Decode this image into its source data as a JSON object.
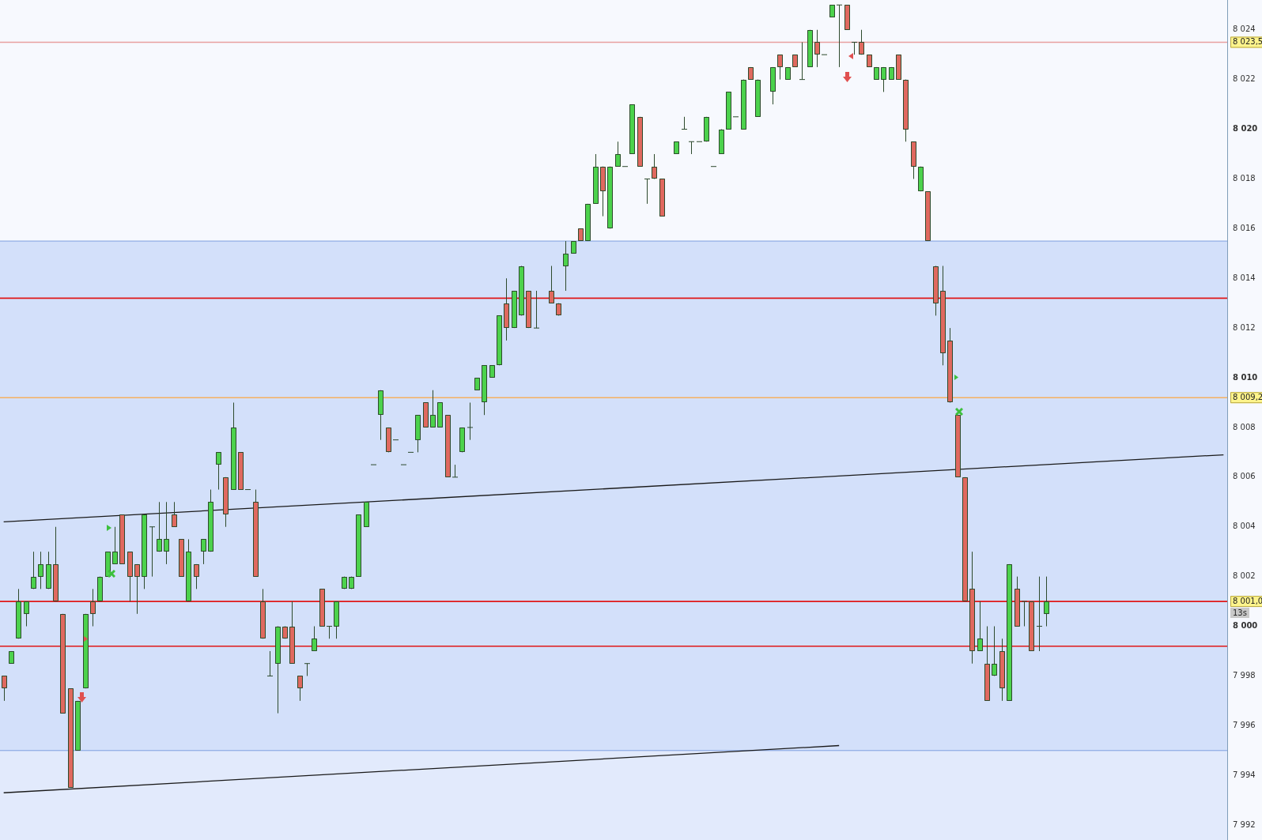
{
  "chart_data": {
    "type": "candlestick",
    "categories": [
      null,
      null,
      null,
      null,
      null,
      null,
      null,
      null,
      null,
      null,
      null,
      null,
      null,
      null,
      null,
      null,
      null,
      null,
      null,
      null,
      null,
      null,
      null,
      null,
      null,
      null,
      null,
      null,
      null,
      null,
      null,
      null,
      null,
      null,
      null,
      null,
      null,
      null,
      null,
      null,
      null,
      null,
      null,
      null,
      null,
      null,
      null,
      null,
      null,
      null,
      null,
      null,
      null,
      null,
      null,
      null,
      null,
      null,
      null,
      null,
      null,
      null,
      null,
      null,
      null,
      null,
      null,
      null,
      null,
      null,
      null,
      null,
      null,
      null,
      null,
      null,
      null,
      null,
      null,
      null,
      null,
      null,
      null,
      null,
      null,
      null,
      null,
      null,
      null,
      null,
      null,
      null,
      null,
      null,
      null,
      null,
      null,
      null,
      null,
      null,
      null,
      null,
      null,
      null,
      null,
      null,
      null,
      null,
      null,
      null,
      null,
      null,
      null,
      null,
      null,
      null,
      null,
      null,
      null,
      null,
      null,
      null,
      null,
      null,
      null,
      null,
      null,
      null,
      null,
      null,
      null,
      null,
      null,
      null,
      null,
      null,
      null,
      null,
      null,
      null,
      null,
      null,
      null,
      null,
      null,
      null,
      null,
      null,
      null,
      null,
      null,
      null,
      null,
      null,
      null,
      null,
      null,
      null,
      null,
      null,
      null,
      null,
      null,
      null,
      null,
      null
    ],
    "ohlc": [
      [
        7998,
        7998,
        7997,
        7997.5
      ],
      [
        7998.5,
        7999,
        7998.5,
        7999
      ],
      [
        7999.5,
        8001.5,
        7999.5,
        8001
      ],
      [
        8000.5,
        8001,
        8000,
        8001
      ],
      [
        8001.5,
        8003,
        8001.5,
        8002
      ],
      [
        8002,
        8003,
        8001.5,
        8002.5
      ],
      [
        8001.5,
        8003,
        8001.5,
        8002.5
      ],
      [
        8002.5,
        8004,
        8001,
        8001
      ],
      [
        8000.5,
        8000.5,
        7996.5,
        7996.5
      ],
      [
        7997.5,
        7997.5,
        7993.5,
        7993.5
      ],
      [
        7995,
        7997,
        7995,
        7997
      ],
      [
        7997.5,
        8000.5,
        7997.5,
        8000.5
      ],
      [
        8001,
        8001.5,
        8000,
        8000.5
      ],
      [
        8001,
        8002,
        8001,
        8002
      ],
      [
        8002,
        8003,
        8002,
        8003
      ],
      [
        8002.5,
        8004,
        8002.5,
        8003
      ],
      [
        8004.5,
        8004.5,
        8002.5,
        8002.5
      ],
      [
        8003,
        8003,
        8001,
        8002
      ],
      [
        8002.5,
        8002.5,
        8000.5,
        8002
      ],
      [
        8002,
        8004.5,
        8001.5,
        8004.5
      ],
      [
        8004,
        8004,
        8002,
        8004
      ],
      [
        8003,
        8005,
        8003,
        8003.5
      ],
      [
        8003,
        8005,
        8002.5,
        8003.5
      ],
      [
        8004.5,
        8005,
        8004,
        8004
      ],
      [
        8003.5,
        8003.5,
        8002,
        8002
      ],
      [
        8001,
        8003.5,
        8001,
        8003
      ],
      [
        8002.5,
        8002.5,
        8001.5,
        8002
      ],
      [
        8003,
        8003.5,
        8002.5,
        8003.5
      ],
      [
        8003,
        8005.5,
        8003,
        8005
      ],
      [
        8006.5,
        8007,
        8005.5,
        8007
      ],
      [
        8006,
        8006,
        8004,
        8004.5
      ],
      [
        8005.5,
        8009,
        8005.5,
        8008
      ],
      [
        8007,
        8007,
        8005.5,
        8005.5
      ],
      [
        8005.5,
        8005.5,
        8005.5,
        8005.5
      ],
      [
        8005,
        8005.5,
        8002,
        8002
      ],
      [
        8001,
        8001.5,
        7999.5,
        7999.5
      ],
      [
        7998,
        7999,
        7998,
        7998
      ],
      [
        7998.5,
        8000,
        7996.5,
        8000
      ],
      [
        8000,
        8000,
        7999.5,
        7999.5
      ],
      [
        8000,
        8001,
        7998.5,
        7998.5
      ],
      [
        7998,
        7998,
        7997,
        7997.5
      ],
      [
        7998.5,
        7998.5,
        7998,
        7998.5
      ],
      [
        7999,
        8000,
        7999,
        7999.5
      ],
      [
        8001.5,
        8001.5,
        8000,
        8000
      ],
      [
        8000,
        8000,
        7999.5,
        8000
      ],
      [
        8000,
        8001,
        7999.5,
        8001
      ],
      [
        8001.5,
        8002,
        8001.5,
        8002
      ],
      [
        8001.5,
        8002,
        8001.5,
        8002
      ],
      [
        8002,
        8004.5,
        8002,
        8004.5
      ],
      [
        8004,
        8005,
        8004,
        8005
      ],
      [
        8006.5,
        8006.5,
        8006.5,
        8006.5
      ],
      [
        8008.5,
        8009.5,
        8007.5,
        8009.5
      ],
      [
        8008,
        8008,
        8007,
        8007
      ],
      [
        8007.5,
        8007.5,
        8007.5,
        8007.5
      ],
      [
        8006.5,
        8006.5,
        8006.5,
        8006.5
      ],
      [
        8007,
        8007,
        8007,
        8007
      ],
      [
        8007.5,
        8008.5,
        8007,
        8008.5
      ],
      [
        8009,
        8009,
        8008,
        8008
      ],
      [
        8008,
        8009.5,
        8008,
        8008.5
      ],
      [
        8008,
        8009,
        8008,
        8009
      ],
      [
        8008.5,
        8008.5,
        8006,
        8006
      ],
      [
        8006,
        8006.5,
        8006,
        8006
      ],
      [
        8007,
        8008,
        8007,
        8008
      ],
      [
        8008,
        8009,
        8007.5,
        8008
      ],
      [
        8009.5,
        8010,
        8009.5,
        8010
      ],
      [
        8009,
        8010.5,
        8008.5,
        8010.5
      ],
      [
        8010,
        8010.5,
        8010,
        8010.5
      ],
      [
        8010.5,
        8012.5,
        8010.5,
        8012.5
      ],
      [
        8013,
        8014,
        8011.5,
        8012
      ],
      [
        8012,
        8013.5,
        8012,
        8013.5
      ],
      [
        8012.5,
        8014.5,
        8012.5,
        8014.5
      ],
      [
        8013.5,
        8013.5,
        8012,
        8012
      ],
      [
        8012,
        8013.5,
        8012,
        8012
      ],
      null,
      [
        8013.5,
        8014.5,
        8013,
        8013
      ],
      [
        8013,
        8013,
        8012.5,
        8012.5
      ],
      [
        8014.5,
        8015.5,
        8013.5,
        8015
      ],
      [
        8015,
        8015.5,
        8015,
        8015.5
      ],
      [
        8016,
        8016,
        8015.5,
        8015.5
      ],
      [
        8015.5,
        8017,
        8015.5,
        8017
      ],
      [
        8017,
        8019,
        8017,
        8018.5
      ],
      [
        8018.5,
        8018.5,
        8016.5,
        8017.5
      ],
      [
        8016,
        8018.5,
        8016,
        8018.5
      ],
      [
        8018.5,
        8019.5,
        8018.5,
        8019
      ],
      [
        8018.5,
        8018.5,
        8018.5,
        8018.5
      ],
      [
        8019,
        8021,
        8019,
        8021
      ],
      [
        8020.5,
        8020.5,
        8018.5,
        8018.5
      ],
      [
        8018,
        8018,
        8017,
        8018
      ],
      [
        8018.5,
        8019,
        8018,
        8018
      ],
      [
        8018,
        8018,
        8016.5,
        8016.5
      ],
      null,
      [
        8019,
        8019.5,
        8019,
        8019.5
      ],
      [
        8020,
        8020.5,
        8020,
        8020
      ],
      [
        8019.5,
        8019.5,
        8019,
        8019.5
      ],
      [
        8019.5,
        8019.5,
        8019.5,
        8019.5
      ],
      [
        8019.5,
        8020.5,
        8019.5,
        8020.5
      ],
      [
        8018.5,
        8018.5,
        8018.5,
        8018.5
      ],
      [
        8019,
        8020,
        8019,
        8020
      ],
      [
        8020,
        8021.5,
        8020,
        8021.5
      ],
      [
        8020.5,
        8020.5,
        8020.5,
        8020.5
      ],
      [
        8020,
        8022,
        8020,
        8022
      ],
      [
        8022.5,
        8022.5,
        8022,
        8022
      ],
      [
        8020.5,
        8022,
        8020.5,
        8022
      ],
      null,
      [
        8021.5,
        8022.5,
        8021,
        8022.5
      ],
      [
        8023,
        8023,
        8022,
        8022.5
      ],
      [
        8022,
        8022.5,
        8022,
        8022.5
      ],
      [
        8023,
        8023,
        8022.5,
        8022.5
      ],
      [
        8022,
        8023.5,
        8022,
        8022
      ],
      [
        8022.5,
        8024,
        8022.5,
        8024
      ],
      [
        8023.5,
        8024,
        8022.5,
        8023
      ],
      [
        8023,
        8023,
        8023,
        8023
      ],
      [
        8024.5,
        8025,
        8024.5,
        8025
      ],
      [
        8025,
        8025,
        8022.5,
        8025
      ],
      [
        8025,
        8025,
        8024,
        8024
      ],
      [
        8023.5,
        8023.5,
        8023,
        8023.5
      ],
      [
        8023.5,
        8024,
        8023,
        8023
      ],
      [
        8023,
        8023,
        8022.5,
        8022.5
      ],
      [
        8022,
        8022.5,
        8022,
        8022.5
      ],
      [
        8022,
        8022.5,
        8021.5,
        8022.5
      ],
      [
        8022,
        8022.5,
        8022,
        8022.5
      ],
      [
        8023,
        8023,
        8022,
        8022
      ],
      [
        8022,
        8022,
        8019.5,
        8020
      ],
      [
        8019.5,
        8019.5,
        8018,
        8018.5
      ],
      [
        8017.5,
        8018.5,
        8017.5,
        8018.5
      ],
      [
        8017.5,
        8017.5,
        8015.5,
        8015.5
      ],
      [
        8014.5,
        8014.5,
        8012.5,
        8013
      ],
      [
        8013.5,
        8014.5,
        8010.5,
        8011
      ],
      [
        8011.5,
        8012,
        8009,
        8009
      ],
      [
        8008.5,
        8008.5,
        8006,
        8006
      ],
      [
        8006,
        8006,
        8001,
        8001
      ],
      [
        8001.5,
        8003,
        7998.5,
        7999
      ],
      [
        7999,
        8001,
        7999,
        7999.5
      ],
      [
        7998.5,
        8000,
        7997,
        7997
      ],
      [
        7998,
        8000,
        7998,
        7998.5
      ],
      [
        7999,
        7999.5,
        7997,
        7997.5
      ],
      [
        7997,
        8002.5,
        7997,
        8002.5
      ],
      [
        8001.5,
        8002,
        8000,
        8000
      ],
      [
        8001,
        8001,
        8000,
        8001
      ],
      [
        8001,
        8001,
        7999,
        7999
      ],
      [
        8000,
        8002,
        7999,
        8000
      ],
      [
        8000.5,
        8002,
        8000,
        8001
      ],
      null,
      null,
      null,
      null,
      null,
      null,
      null,
      null,
      null,
      null,
      null,
      null,
      null,
      null,
      null,
      null,
      null,
      null,
      null,
      null,
      null,
      null,
      null,
      null
    ],
    "colors": [
      "#e0695f",
      "#4cd24c",
      "#4cd24c",
      "#4cd24c",
      "#4cd24c",
      "#4cd24c",
      "#4cd24c",
      "#e0695f",
      "#e0695f",
      "#e0695f",
      "#4cd24c",
      "#4cd24c",
      "#e0695f",
      "#4cd24c",
      "#4cd24c",
      "#4cd24c",
      "#e0695f",
      "#e0695f",
      "#e0695f",
      "#4cd24c",
      "#2e4a2e",
      "#4cd24c",
      "#4cd24c",
      "#e0695f",
      "#e0695f",
      "#4cd24c",
      "#e0695f",
      "#4cd24c",
      "#4cd24c",
      "#4cd24c",
      "#e0695f",
      "#4cd24c",
      "#e0695f",
      "#2e4a2e",
      "#e0695f",
      "#e0695f",
      "#2e4a2e",
      "#4cd24c",
      "#e0695f",
      "#e0695f",
      "#e0695f",
      "#2e4a2e",
      "#4cd24c",
      "#e0695f",
      "#2e4a2e",
      "#4cd24c",
      "#4cd24c",
      "#4cd24c",
      "#4cd24c",
      "#4cd24c",
      "#2e4a2e",
      "#4cd24c",
      "#e0695f",
      "#2e4a2e",
      "#2e4a2e",
      "#2e4a2e",
      "#4cd24c",
      "#e0695f",
      "#4cd24c",
      "#4cd24c",
      "#e0695f",
      "#2e4a2e",
      "#4cd24c",
      "#2e4a2e",
      "#4cd24c",
      "#4cd24c",
      "#4cd24c",
      "#4cd24c",
      "#e0695f",
      "#4cd24c",
      "#4cd24c",
      "#e0695f",
      "#2e4a2e",
      null,
      "#e0695f",
      "#e0695f",
      "#4cd24c",
      "#4cd24c",
      "#e0695f",
      "#4cd24c",
      "#4cd24c",
      "#e0695f",
      "#4cd24c",
      "#4cd24c",
      "#2e4a2e",
      "#4cd24c",
      "#e0695f",
      "#2e4a2e",
      "#e0695f",
      "#e0695f",
      null,
      "#4cd24c",
      "#2e4a2e",
      "#2e4a2e",
      "#2e4a2e",
      "#4cd24c",
      "#2e4a2e",
      "#4cd24c",
      "#4cd24c",
      "#2e4a2e",
      "#4cd24c",
      "#e0695f",
      "#4cd24c",
      null,
      "#4cd24c",
      "#e0695f",
      "#4cd24c",
      "#e0695f",
      "#2e4a2e",
      "#4cd24c",
      "#e0695f",
      "#2e4a2e",
      "#4cd24c",
      "#2e4a2e",
      "#e0695f",
      "#2e4a2e",
      "#e0695f",
      "#e0695f",
      "#4cd24c",
      "#4cd24c",
      "#4cd24c",
      "#e0695f",
      "#e0695f",
      "#e0695f",
      "#4cd24c",
      "#e0695f",
      "#e0695f",
      "#e0695f",
      "#e0695f",
      "#e0695f",
      "#e0695f",
      "#e0695f",
      "#4cd24c",
      "#e0695f",
      "#4cd24c",
      "#e0695f",
      "#4cd24c",
      "#e0695f",
      "#2e4a2e",
      "#e0695f",
      "#2e4a2e",
      "#4cd24c",
      null,
      null,
      null,
      null,
      null,
      null,
      null,
      null,
      null,
      null,
      null,
      null,
      null,
      null,
      null,
      null,
      null,
      null,
      null,
      null,
      null,
      null,
      null,
      null
    ],
    "series": [
      {
        "type": "line",
        "color": "#1a1a1a",
        "values": [
          8004.2,
          null,
          null,
          null,
          null,
          null,
          null,
          null,
          null,
          null,
          null,
          null,
          null,
          null,
          null,
          null,
          null,
          null,
          null,
          null,
          null,
          null,
          null,
          null,
          null,
          null,
          null,
          null,
          null,
          null,
          null,
          null,
          null,
          null,
          null,
          null,
          null,
          null,
          null,
          null,
          null,
          null,
          null,
          null,
          null,
          null,
          null,
          null,
          null,
          null,
          null,
          null,
          null,
          null,
          null,
          null,
          null,
          null,
          null,
          null,
          null,
          null,
          null,
          null,
          null,
          null,
          null,
          null,
          null,
          null,
          null,
          null,
          null,
          null,
          null,
          null,
          null,
          null,
          null,
          null,
          null,
          null,
          null,
          null,
          null,
          null,
          null,
          null,
          null,
          null,
          null,
          null,
          null,
          null,
          null,
          null,
          null,
          null,
          null,
          null,
          null,
          null,
          null,
          null,
          null,
          null,
          null,
          null,
          null,
          null,
          null,
          null,
          null,
          null,
          null,
          null,
          null,
          null,
          null,
          null,
          null,
          null,
          null,
          null,
          null,
          null,
          null,
          null,
          null,
          null,
          null,
          null,
          null,
          null,
          null,
          null,
          null,
          null,
          null,
          null,
          null,
          null,
          null,
          null,
          null,
          null,
          null,
          null,
          null,
          null,
          null,
          null,
          null,
          null,
          null,
          null,
          null,
          null,
          null,
          null,
          null,
          null,
          null,
          null,
          null,
          8006.9
        ]
      },
      {
        "type": "line",
        "color": "#1a1a1a",
        "values": [
          7993.3,
          null,
          null,
          null,
          null,
          null,
          null,
          null,
          null,
          null,
          null,
          null,
          null,
          null,
          null,
          null,
          null,
          null,
          null,
          null,
          null,
          null,
          null,
          null,
          null,
          null,
          null,
          null,
          null,
          null,
          null,
          null,
          null,
          null,
          null,
          null,
          null,
          null,
          null,
          null,
          null,
          null,
          null,
          null,
          null,
          null,
          null,
          null,
          null,
          null,
          null,
          null,
          null,
          null,
          null,
          null,
          null,
          null,
          null,
          null,
          null,
          null,
          null,
          null,
          null,
          null,
          null,
          null,
          null,
          null,
          null,
          null,
          null,
          null,
          null,
          null,
          null,
          null,
          null,
          null,
          null,
          null,
          null,
          null,
          null,
          null,
          null,
          null,
          null,
          null,
          null,
          null,
          null,
          null,
          null,
          null,
          null,
          null,
          null,
          null,
          null,
          null,
          null,
          null,
          null,
          null,
          null,
          null,
          null,
          null,
          null,
          null,
          null,
          7995.2,
          null,
          null,
          null,
          null,
          null,
          null,
          null,
          null,
          null,
          null,
          null,
          null,
          null,
          null,
          null,
          null,
          null,
          null,
          null,
          null,
          null,
          null,
          null,
          null,
          null,
          null,
          null,
          null,
          null,
          null,
          null,
          null,
          null,
          null,
          null,
          null,
          null,
          null,
          null,
          null,
          null,
          null,
          null,
          null,
          null,
          null,
          null,
          null,
          null,
          null,
          null,
          null
        ]
      }
    ],
    "ylim": [
      7991.4,
      8025.2
    ],
    "yticks": [
      {
        "value": 7992,
        "label": "7 992"
      },
      {
        "value": 7994,
        "label": "7 994"
      },
      {
        "value": 7996,
        "label": "7 996"
      },
      {
        "value": 7998,
        "label": "7 998"
      },
      {
        "value": 8000,
        "label": "8 000"
      },
      {
        "value": 8002,
        "label": "8 002"
      },
      {
        "value": 8004,
        "label": "8 004"
      },
      {
        "value": 8006,
        "label": "8 006"
      },
      {
        "value": 8008,
        "label": "8 008"
      },
      {
        "value": 8010,
        "label": "8 010"
      },
      {
        "value": 8012,
        "label": "8 012"
      },
      {
        "value": 8014,
        "label": "8 014"
      },
      {
        "value": 8016,
        "label": "8 016"
      },
      {
        "value": 8018,
        "label": "8 018"
      },
      {
        "value": 8020,
        "label": "8 020"
      },
      {
        "value": 8022,
        "label": "8 022"
      },
      {
        "value": 8024,
        "label": "8 024"
      }
    ],
    "bands": [
      {
        "axis": "y",
        "from": 7995,
        "to": 8015.5,
        "color": "#d3e0fa"
      },
      {
        "axis": "y",
        "from": 7991.4,
        "to": 7995,
        "color": "#e2eafc"
      }
    ],
    "ref_lines": [
      {
        "axis": "y",
        "value": 8023.5,
        "label": "8 023,5",
        "color": "#e8a0a0"
      },
      {
        "axis": "y",
        "value": 8015.5,
        "label": null,
        "color": "#7e9fe0"
      },
      {
        "axis": "y",
        "value": 7995,
        "label": null,
        "color": "#7e9fe0"
      },
      {
        "axis": "y",
        "value": 8013.2,
        "label": null,
        "color": "#e01818"
      },
      {
        "axis": "y",
        "value": 8009.2,
        "label": "8 009,2",
        "color": "#f5b060"
      },
      {
        "axis": "y",
        "value": 8001.0,
        "label": "8 001,0",
        "color": "#e01818"
      },
      {
        "axis": "y",
        "value": 7999.2,
        "label": null,
        "color": "#e01818"
      }
    ],
    "annotations": [
      "13s"
    ],
    "tick_labels": "y"
  }
}
